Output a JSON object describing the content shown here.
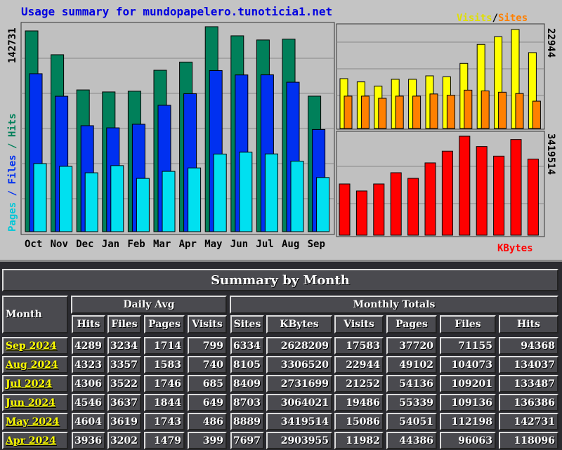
{
  "chart": {
    "title": "Usage summary for mundopapelero.tunoticia1.net",
    "left_legend": {
      "pages": "Pages",
      "files": "Files",
      "hits": "Hits",
      "sep": " / "
    },
    "right_top_legend": {
      "visits": "Visits",
      "sites": "Sites",
      "sep": "/"
    },
    "right_bottom_legend": "KBytes",
    "max_hits_label": "142731",
    "max_visits_label": "22944",
    "max_kbytes_label": "3419514",
    "colors": {
      "hits": "#00805a",
      "files": "#0030f0",
      "pages": "#00e0f0",
      "visits": "#ffff00",
      "sites": "#ff8000",
      "kbytes": "#ff0000"
    }
  },
  "chart_data": {
    "type": "bar",
    "categories": [
      "Oct",
      "Nov",
      "Dec",
      "Jan",
      "Feb",
      "Mar",
      "Apr",
      "May",
      "Jun",
      "Jul",
      "Aug",
      "Sep"
    ],
    "series": [
      {
        "name": "Hits",
        "values": [
          139800,
          123200,
          98700,
          97300,
          97800,
          112400,
          118096,
          142731,
          136386,
          133487,
          134037,
          94368
        ]
      },
      {
        "name": "Files",
        "values": [
          110000,
          94300,
          73800,
          72300,
          74800,
          88000,
          96063,
          112198,
          109136,
          109201,
          104073,
          71155
        ]
      },
      {
        "name": "Pages",
        "values": [
          47400,
          45500,
          41000,
          46000,
          37100,
          42000,
          44386,
          54051,
          55339,
          54136,
          49102,
          37720
        ]
      },
      {
        "name": "Visits",
        "values": [
          11550,
          10800,
          9800,
          11400,
          11400,
          12200,
          11982,
          15086,
          19486,
          21252,
          22944,
          17583
        ]
      },
      {
        "name": "Sites",
        "values": [
          7500,
          7500,
          7000,
          7500,
          7500,
          8000,
          7697,
          8889,
          8703,
          8409,
          8105,
          6334
        ]
      },
      {
        "name": "KBytes",
        "values": [
          1770000,
          1528000,
          1770000,
          2158000,
          1964000,
          2498000,
          2903955,
          3419514,
          3064021,
          2731699,
          3306520,
          2628209
        ]
      }
    ]
  },
  "table": {
    "title": "Summary by Month",
    "month_header": "Month",
    "daily_avg": "Daily Avg",
    "monthly_totals": "Monthly Totals",
    "columns": [
      "Hits",
      "Files",
      "Pages",
      "Visits",
      "Sites",
      "KBytes",
      "Visits",
      "Pages",
      "Files",
      "Hits"
    ],
    "rows": [
      [
        "Sep 2024",
        "4289",
        "3234",
        "1714",
        "799",
        "6334",
        "2628209",
        "17583",
        "37720",
        "71155",
        "94368"
      ],
      [
        "Aug 2024",
        "4323",
        "3357",
        "1583",
        "740",
        "8105",
        "3306520",
        "22944",
        "49102",
        "104073",
        "134037"
      ],
      [
        "Jul 2024",
        "4306",
        "3522",
        "1746",
        "685",
        "8409",
        "2731699",
        "21252",
        "54136",
        "109201",
        "133487"
      ],
      [
        "Jun 2024",
        "4546",
        "3637",
        "1844",
        "649",
        "8703",
        "3064021",
        "19486",
        "55339",
        "109136",
        "136386"
      ],
      [
        "May 2024",
        "4604",
        "3619",
        "1743",
        "486",
        "8889",
        "3419514",
        "15086",
        "54051",
        "112198",
        "142731"
      ],
      [
        "Apr 2024",
        "3936",
        "3202",
        "1479",
        "399",
        "7697",
        "2903955",
        "11982",
        "44386",
        "96063",
        "118096"
      ]
    ]
  }
}
